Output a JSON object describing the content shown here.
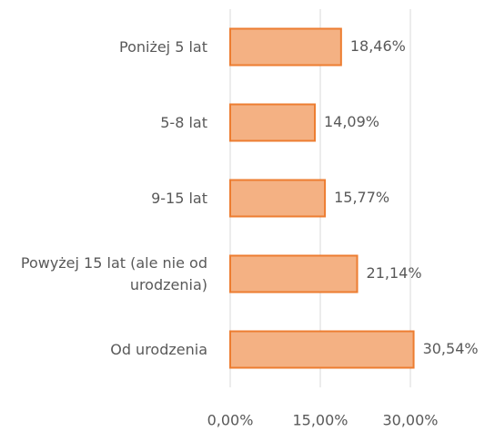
{
  "chart_data": {
    "type": "hbar",
    "categories": [
      "Poniżej 5 lat",
      "5-8 lat",
      "9-15 lat",
      "Powyżej 15 lat (ale nie od urodzenia)",
      "Od urodzenia"
    ],
    "values": [
      18.46,
      14.09,
      15.77,
      21.14,
      30.54
    ],
    "value_labels": [
      "18,46%",
      "14,09%",
      "15,77%",
      "21,14%",
      "30,54%"
    ],
    "color": "#f4b183",
    "edge_color": "#ed7d31",
    "xlim": [
      0,
      30
    ],
    "xticks": [
      {
        "value": 0,
        "label": "0,00%"
      },
      {
        "value": 15,
        "label": "15,00%"
      },
      {
        "value": 30,
        "label": "30,00%"
      }
    ],
    "grid": true
  }
}
